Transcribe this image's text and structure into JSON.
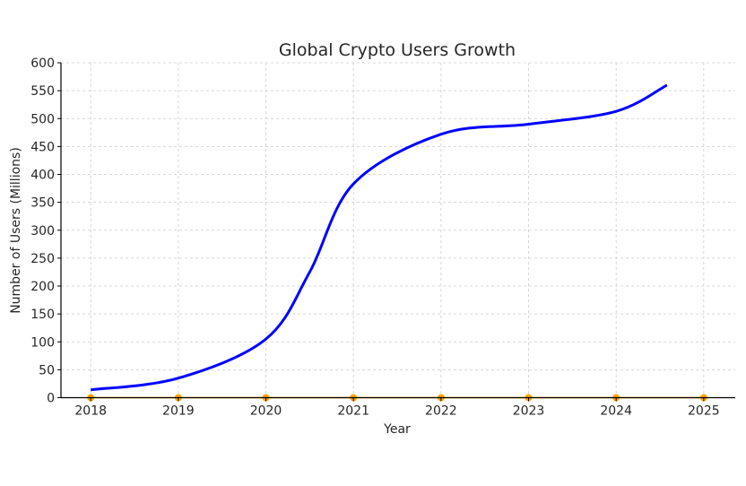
{
  "chart_data": {
    "type": "line",
    "title": "Global Crypto Users Growth",
    "xlabel": "Year",
    "ylabel": "Number of Users (Millions)",
    "xlim": [
      2017.66,
      2025.36
    ],
    "ylim": [
      0,
      600
    ],
    "xticks": [
      "2018",
      "2019",
      "2020",
      "2021",
      "2022",
      "2023",
      "2024",
      "2025"
    ],
    "yticks": [
      "0",
      "50",
      "100",
      "150",
      "200",
      "250",
      "300",
      "350",
      "400",
      "450",
      "500",
      "550",
      "600"
    ],
    "grid": true,
    "series": [
      {
        "color": "#0000ff",
        "smooth": true,
        "x": [
          2018,
          2019,
          2020,
          2020.5,
          2021,
          2022,
          2023,
          2024,
          2024.58
        ],
        "y": [
          14,
          35,
          105,
          225,
          383,
          472,
          490,
          513,
          560
        ]
      },
      {
        "color": "#ffa500",
        "markers": true,
        "x": [
          2018,
          2019,
          2020,
          2021,
          2022,
          2023,
          2024,
          2025
        ],
        "y": [
          0,
          0,
          0,
          0,
          0,
          0,
          0,
          0
        ]
      }
    ]
  }
}
